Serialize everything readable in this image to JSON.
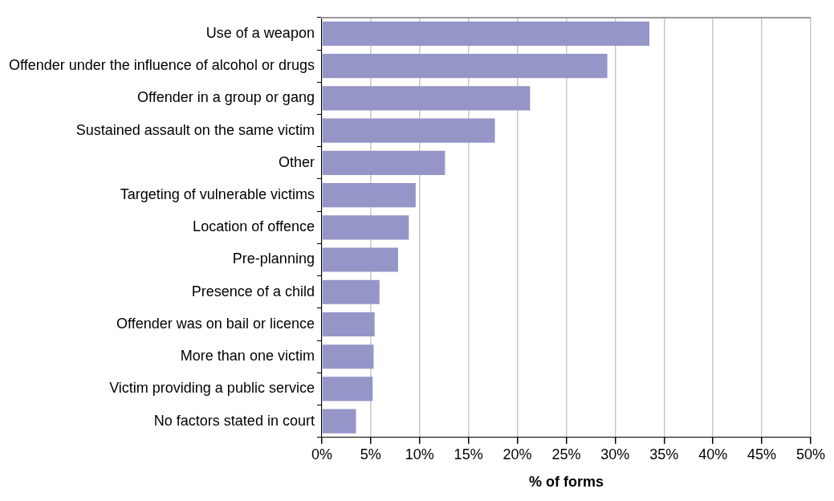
{
  "chart_data": {
    "type": "bar",
    "orientation": "horizontal",
    "xlabel": "% of forms",
    "categories": [
      "Use of a weapon",
      "Offender under the influence of alcohol or drugs",
      "Offender in a group or gang",
      "Sustained assault on the same victim",
      "Other",
      "Targeting of vulnerable victims",
      "Location of offence",
      "Pre-planning",
      "Presence of a child",
      "Offender was on bail or licence",
      "More than one victim",
      "Victim providing a public service",
      "No factors stated in court"
    ],
    "values": [
      33.5,
      29.2,
      21.3,
      17.7,
      12.6,
      9.6,
      8.9,
      7.8,
      5.9,
      5.4,
      5.3,
      5.2,
      3.5
    ],
    "color": "#9595c8",
    "xlim": [
      0,
      50
    ],
    "xticks": [
      {
        "value": 0,
        "label": "0%"
      },
      {
        "value": 5,
        "label": "5%"
      },
      {
        "value": 10,
        "label": "10%"
      },
      {
        "value": 15,
        "label": "15%"
      },
      {
        "value": 20,
        "label": "20%"
      },
      {
        "value": 25,
        "label": "25%"
      },
      {
        "value": 30,
        "label": "30%"
      },
      {
        "value": 35,
        "label": "35%"
      },
      {
        "value": 40,
        "label": "40%"
      },
      {
        "value": 45,
        "label": "45%"
      },
      {
        "value": 50,
        "label": "50%"
      }
    ],
    "grid": "x",
    "legend": false
  }
}
